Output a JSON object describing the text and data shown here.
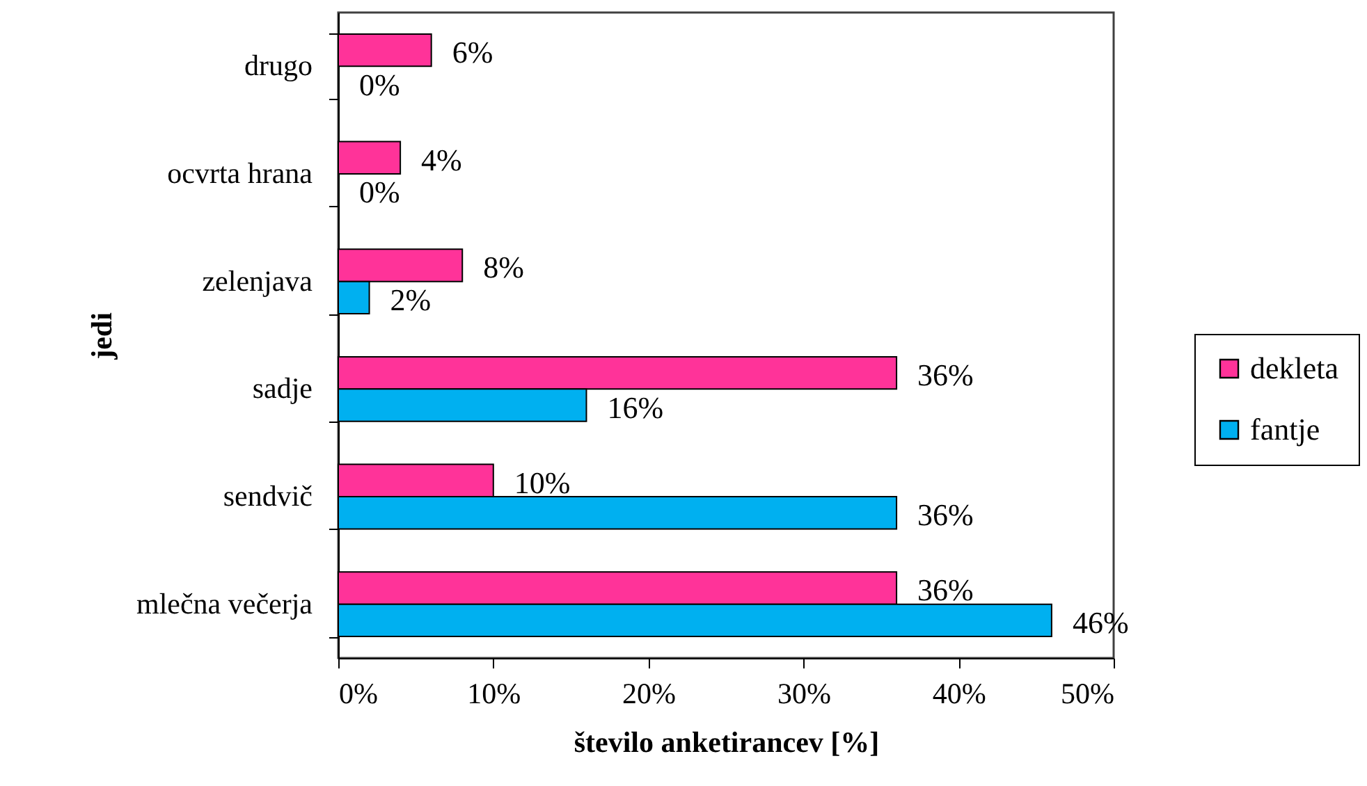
{
  "chart_data": {
    "type": "bar",
    "orientation": "horizontal",
    "categories": [
      "drugo",
      "ocvrta hrana",
      "zelenjava",
      "sadje",
      "sendvič",
      "mlečna večerja"
    ],
    "series": [
      {
        "name": "dekleta",
        "color": "#ff3399",
        "values": [
          6,
          4,
          8,
          36,
          10,
          36
        ],
        "value_labels": [
          "6%",
          "4%",
          "8%",
          "36%",
          "10%",
          "36%"
        ]
      },
      {
        "name": "fantje",
        "color": "#00b0f0",
        "values": [
          0,
          0,
          2,
          16,
          36,
          46
        ],
        "value_labels": [
          "0%",
          "0%",
          "2%",
          "16%",
          "36%",
          "46%"
        ]
      }
    ],
    "xlabel": "število anketirancev [%]",
    "ylabel": "jedi",
    "xlim": [
      0,
      50
    ],
    "xticks": [
      {
        "value": 0,
        "label": "0%"
      },
      {
        "value": 10,
        "label": "10%"
      },
      {
        "value": 20,
        "label": "20%"
      },
      {
        "value": 30,
        "label": "30%"
      },
      {
        "value": 40,
        "label": "40%"
      },
      {
        "value": 50,
        "label": "50%"
      }
    ],
    "legend": "right"
  }
}
